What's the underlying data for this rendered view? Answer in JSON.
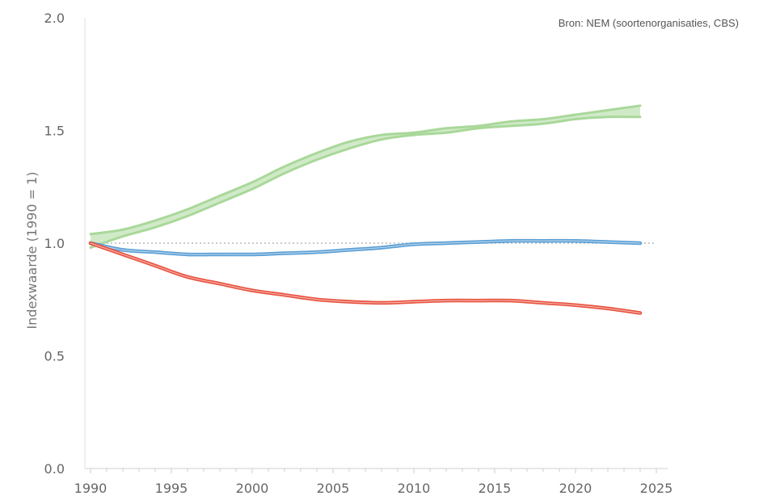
{
  "source": "Bron: NEM (soortenorganisaties, CBS)",
  "chart_data": {
    "type": "line",
    "ylabel": "Indexwaarde (1990 = 1)",
    "xlabel": "",
    "xlim": [
      1990,
      2025
    ],
    "ylim": [
      0,
      2
    ],
    "xticks": [
      1990,
      1995,
      2000,
      2005,
      2010,
      2015,
      2020,
      2025
    ],
    "yticks": [
      {
        "value": 0,
        "label": "0.0"
      },
      {
        "value": 0.5,
        "label": "0.5"
      },
      {
        "value": 1,
        "label": "1.0"
      },
      {
        "value": 1.5,
        "label": "1.5"
      },
      {
        "value": 2,
        "label": "2.0"
      }
    ],
    "reference_line": 1.0,
    "grid": false,
    "series": [
      {
        "color": "#a9d89a",
        "band": true,
        "x": [
          1990,
          1992,
          1994,
          1996,
          1998,
          2000,
          2002,
          2004,
          2006,
          2008,
          2010,
          2012,
          2014,
          2016,
          2018,
          2020,
          2022,
          2024
        ],
        "lower": [
          0.98,
          1.03,
          1.07,
          1.12,
          1.18,
          1.24,
          1.31,
          1.37,
          1.42,
          1.46,
          1.48,
          1.49,
          1.51,
          1.52,
          1.53,
          1.55,
          1.56,
          1.56
        ],
        "upper": [
          1.04,
          1.06,
          1.1,
          1.15,
          1.21,
          1.27,
          1.34,
          1.4,
          1.45,
          1.48,
          1.49,
          1.51,
          1.52,
          1.54,
          1.55,
          1.57,
          1.59,
          1.61
        ]
      },
      {
        "color": "#5b9fd6",
        "x": [
          1990,
          1992,
          1994,
          1996,
          1998,
          2000,
          2002,
          2004,
          2006,
          2008,
          2010,
          2012,
          2014,
          2016,
          2018,
          2020,
          2022,
          2024
        ],
        "values": [
          1.0,
          0.97,
          0.96,
          0.95,
          0.95,
          0.95,
          0.955,
          0.96,
          0.97,
          0.98,
          0.995,
          1.0,
          1.005,
          1.01,
          1.01,
          1.01,
          1.005,
          1.0
        ]
      },
      {
        "color": "#e8533f",
        "x": [
          1990,
          1992,
          1994,
          1996,
          1998,
          2000,
          2002,
          2004,
          2006,
          2008,
          2010,
          2012,
          2014,
          2016,
          2018,
          2020,
          2022,
          2024
        ],
        "values": [
          1.0,
          0.95,
          0.9,
          0.85,
          0.82,
          0.79,
          0.77,
          0.75,
          0.74,
          0.735,
          0.74,
          0.745,
          0.745,
          0.745,
          0.735,
          0.725,
          0.71,
          0.69
        ]
      }
    ]
  }
}
